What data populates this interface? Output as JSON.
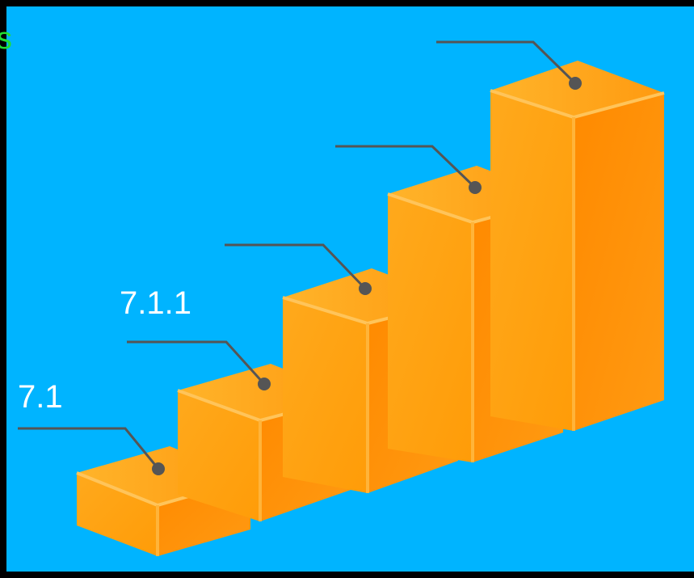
{
  "heading": "s",
  "step_labels": [
    "7.1",
    "7.1.1"
  ]
}
